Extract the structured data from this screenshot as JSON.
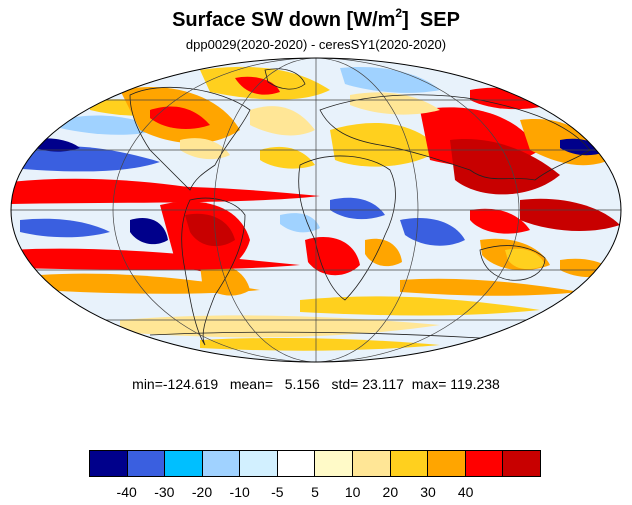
{
  "title": {
    "main": "Surface SW down [W/m",
    "sup": "2",
    "tail": "]  SEP"
  },
  "subtitle": "dpp0029(2020-2020) - ceresSY1(2020-2020)",
  "stats": {
    "min_label": "min=",
    "min": "-124.619",
    "mean_label": "mean=",
    "mean": "5.156",
    "std_label": "std=",
    "std": "23.117",
    "max_label": "max=",
    "max": "119.238"
  },
  "colorbar": {
    "colors": [
      "#00008b",
      "#3a5fe0",
      "#00bfff",
      "#a0d2ff",
      "#d2f0ff",
      "#ffffff",
      "#fffac8",
      "#ffe696",
      "#ffd01e",
      "#ffa500",
      "#ff0000",
      "#c80000"
    ],
    "labels": [
      "-40",
      "-30",
      "-20",
      "-10",
      "-5",
      "5",
      "10",
      "20",
      "30",
      "40"
    ]
  },
  "map": {
    "projection": "mollweide",
    "grid": "on",
    "continent_outlines": "on"
  }
}
